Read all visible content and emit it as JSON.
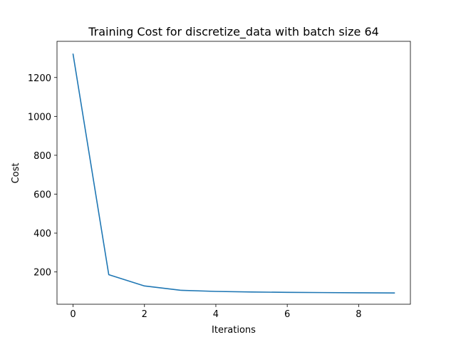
{
  "chart_data": {
    "type": "line",
    "title": "Training Cost for discretize_data with batch size 64",
    "xlabel": "Iterations",
    "ylabel": "Cost",
    "xlim": [
      -0.45,
      9.45
    ],
    "ylim": [
      34,
      1386
    ],
    "xticks": [
      0,
      2,
      4,
      6,
      8
    ],
    "yticks": [
      200,
      400,
      600,
      800,
      1000,
      1200
    ],
    "grid": false,
    "series": [
      {
        "color": "#1f77b4",
        "x": [
          0,
          1,
          2,
          3,
          4,
          5,
          6,
          7,
          8,
          9
        ],
        "y": [
          1320,
          186,
          128,
          106,
          100,
          97,
          95,
          94,
          93,
          92
        ]
      }
    ]
  }
}
